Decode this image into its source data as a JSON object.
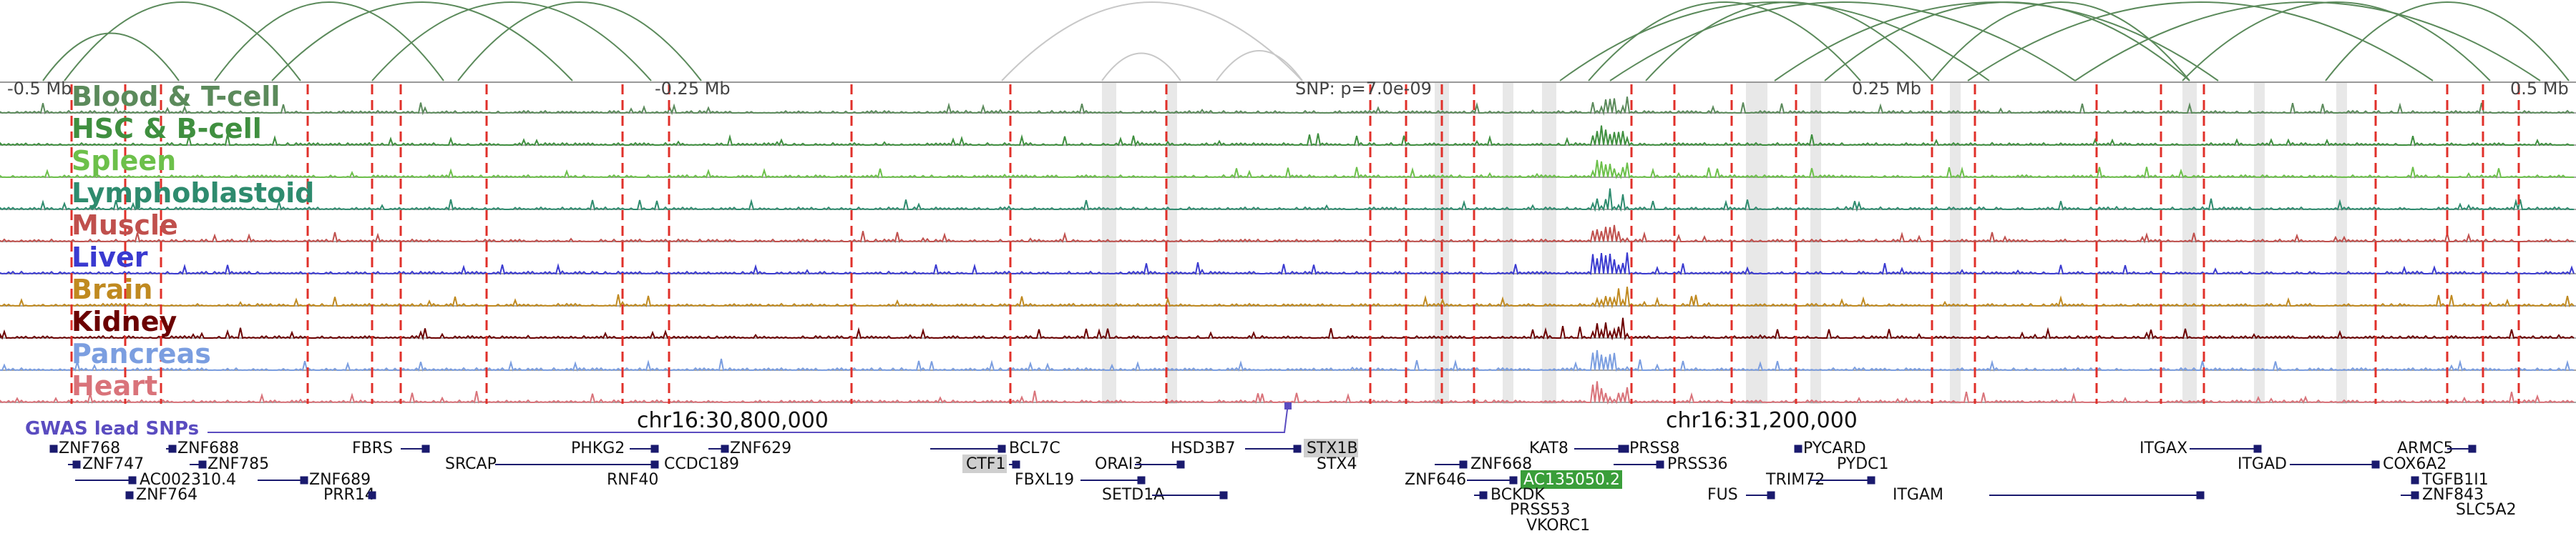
{
  "browser": {
    "axis_labels": {
      "left": "-0.5 Mb",
      "mid_left": "-0.25 Mb",
      "mid_right": "0.25 Mb",
      "right": "0.5 Mb"
    },
    "snp_label": "SNP: p=7.0e-09",
    "chrom_labels": {
      "left": "chr16:30,800,000",
      "right": "chr16:31,200,000"
    },
    "gwas_label": "GWAS lead SNPs"
  },
  "tracks": [
    {
      "name": "Blood & T-cell",
      "color": "#5b8a5b"
    },
    {
      "name": "HSC & B-cell",
      "color": "#3f8f3f"
    },
    {
      "name": "Spleen",
      "color": "#6cc04a"
    },
    {
      "name": "Lymphoblastoid",
      "color": "#2e8b6e"
    },
    {
      "name": "Muscle",
      "color": "#c0504d"
    },
    {
      "name": "Liver",
      "color": "#3a3ad0"
    },
    {
      "name": "Brain",
      "color": "#c08a20"
    },
    {
      "name": "Kidney",
      "color": "#6b0000"
    },
    {
      "name": "Pancreas",
      "color": "#7b9ee0"
    },
    {
      "name": "Heart",
      "color": "#d9737a"
    }
  ],
  "genes": {
    "row1": [
      "ZNF768",
      "ZNF688",
      "FBRS",
      "PHKG2",
      "ZNF629",
      "BCL7C",
      "HSD3B7",
      "STX1B",
      "KAT8",
      "PRSS8",
      "PYCARD",
      "ITGAX",
      "ARMC5"
    ],
    "row2": [
      "ZNF747",
      "ZNF785",
      "SRCAP",
      "CCDC189",
      "CTF1",
      "ORAI3",
      "STX4",
      "ZNF668",
      "PRSS36",
      "PYDC1",
      "ITGAD",
      "COX6A2"
    ],
    "row3": [
      "AC002310.4",
      "ZNF689",
      "RNF40",
      "FBXL19",
      "ZNF646",
      "AC135050.2",
      "TRIM72",
      "TGFB1I1"
    ],
    "row4": [
      "ZNF764",
      "PRR14",
      "SETD1A",
      "BCKDK",
      "FUS",
      "ITGAM",
      "ZNF843"
    ],
    "row5": [
      "PRSS53",
      "SLC5A2"
    ],
    "row6": [
      "VKORC1"
    ]
  },
  "colors": {
    "arc": "#5b8a5b",
    "arc_light": "#c8c8c8",
    "snp_line": "#e0302a",
    "highlight": "#e6e6e6",
    "gene": "#1a1a6e",
    "gwas": "#5a4cc0",
    "highlight_gene": "#3a9e3a"
  }
}
